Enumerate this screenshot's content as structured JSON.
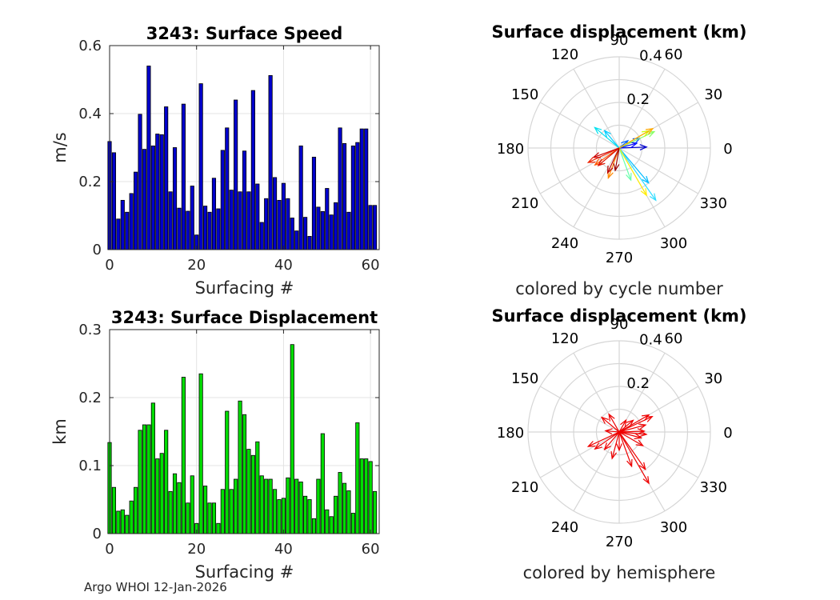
{
  "footer": "Argo WHOI 12-Jan-2026",
  "chart_data": [
    {
      "id": "speed",
      "type": "bar",
      "title": "3243: Surface Speed",
      "xlabel": "Surfacing #",
      "ylabel": "m/s",
      "xlim": [
        0,
        62
      ],
      "ylim": [
        0,
        0.6
      ],
      "xticks": [
        0,
        20,
        40,
        60
      ],
      "xtick_labels": [
        "0",
        "20",
        "40",
        "60"
      ],
      "yticks": [
        0,
        0.2,
        0.4,
        0.6
      ],
      "ytick_labels": [
        "0",
        "0.2",
        "0.4",
        "0.6"
      ],
      "bar_color": "#0000cc",
      "x": [
        0,
        1,
        2,
        3,
        4,
        5,
        6,
        7,
        8,
        9,
        10,
        11,
        12,
        13,
        14,
        15,
        16,
        17,
        18,
        19,
        20,
        21,
        22,
        23,
        24,
        25,
        26,
        27,
        28,
        29,
        30,
        31,
        32,
        33,
        34,
        35,
        36,
        37,
        38,
        39,
        40,
        41,
        42,
        43,
        44,
        45,
        46,
        47,
        48,
        49,
        50,
        51,
        52,
        53,
        54,
        55,
        56,
        57,
        58,
        59,
        60,
        61
      ],
      "values": [
        0.318,
        0.285,
        0.09,
        0.145,
        0.11,
        0.165,
        0.228,
        0.398,
        0.295,
        0.54,
        0.305,
        0.34,
        0.338,
        0.42,
        0.17,
        0.3,
        0.122,
        0.428,
        0.113,
        0.187,
        0.043,
        0.488,
        0.128,
        0.11,
        0.21,
        0.12,
        0.292,
        0.358,
        0.175,
        0.44,
        0.17,
        0.29,
        0.17,
        0.468,
        0.193,
        0.08,
        0.15,
        0.512,
        0.212,
        0.145,
        0.195,
        0.15,
        0.093,
        0.055,
        0.305,
        0.095,
        0.039,
        0.272,
        0.125,
        0.112,
        0.18,
        0.102,
        0.138,
        0.358,
        0.312,
        0.11,
        0.305,
        0.315,
        0.355,
        0.355,
        0.13,
        0.13
      ]
    },
    {
      "id": "displacement",
      "type": "bar",
      "title": "3243: Surface Displacement",
      "xlabel": "Surfacing #",
      "ylabel": "km",
      "xlim": [
        0,
        62
      ],
      "ylim": [
        0,
        0.3
      ],
      "xticks": [
        0,
        20,
        40,
        60
      ],
      "xtick_labels": [
        "0",
        "20",
        "40",
        "60"
      ],
      "yticks": [
        0,
        0.1,
        0.2,
        0.3
      ],
      "ytick_labels": [
        "0",
        "0.1",
        "0.2",
        "0.3"
      ],
      "bar_color": "#00dd00",
      "x": [
        0,
        1,
        2,
        3,
        4,
        5,
        6,
        7,
        8,
        9,
        10,
        11,
        12,
        13,
        14,
        15,
        16,
        17,
        18,
        19,
        20,
        21,
        22,
        23,
        24,
        25,
        26,
        27,
        28,
        29,
        30,
        31,
        32,
        33,
        34,
        35,
        36,
        37,
        38,
        39,
        40,
        41,
        42,
        43,
        44,
        45,
        46,
        47,
        48,
        49,
        50,
        51,
        52,
        53,
        54,
        55,
        56,
        57,
        58,
        59,
        60,
        61
      ],
      "values": [
        0.134,
        0.068,
        0.033,
        0.035,
        0.027,
        0.048,
        0.068,
        0.152,
        0.16,
        0.16,
        0.192,
        0.11,
        0.118,
        0.152,
        0.062,
        0.088,
        0.075,
        0.23,
        0.045,
        0.085,
        0.015,
        0.235,
        0.07,
        0.045,
        0.045,
        0.015,
        0.065,
        0.18,
        0.065,
        0.08,
        0.195,
        0.175,
        0.124,
        0.115,
        0.135,
        0.085,
        0.08,
        0.08,
        0.065,
        0.05,
        0.052,
        0.082,
        0.278,
        0.08,
        0.076,
        0.055,
        0.05,
        0.022,
        0.08,
        0.147,
        0.035,
        0.025,
        0.055,
        0.09,
        0.074,
        0.063,
        0.03,
        0.163,
        0.11,
        0.11,
        0.106,
        0.062
      ]
    },
    {
      "id": "polar-cycle",
      "type": "polar-vector",
      "title": "Surface displacement (km)",
      "caption": "colored by cycle number",
      "r_max": 0.4,
      "r_ticks": [
        "0.2",
        "0.4"
      ],
      "theta_labels": [
        "0",
        "30",
        "60",
        "90",
        "120",
        "150",
        "180",
        "210",
        "240",
        "270",
        "300",
        "330"
      ],
      "vectors": [
        {
          "angle_deg": 2,
          "r": 0.12,
          "color": "#0000cc"
        },
        {
          "angle_deg": 15,
          "r": 0.08,
          "color": "#0000ff"
        },
        {
          "angle_deg": 25,
          "r": 0.1,
          "color": "#0044ff"
        },
        {
          "angle_deg": 40,
          "r": 0.05,
          "color": "#0066ff"
        },
        {
          "angle_deg": 130,
          "r": 0.1,
          "color": "#00ccff"
        },
        {
          "angle_deg": 140,
          "r": 0.14,
          "color": "#00e0ee"
        },
        {
          "angle_deg": 310,
          "r": 0.2,
          "color": "#00bbff"
        },
        {
          "angle_deg": 305,
          "r": 0.28,
          "color": "#33ddff"
        },
        {
          "angle_deg": 290,
          "r": 0.15,
          "color": "#66ffaa"
        },
        {
          "angle_deg": 25,
          "r": 0.17,
          "color": "#88ff66"
        },
        {
          "angle_deg": 30,
          "r": 0.15,
          "color": "#ccff00"
        },
        {
          "angle_deg": 300,
          "r": 0.24,
          "color": "#ffee00"
        },
        {
          "angle_deg": 30,
          "r": 0.17,
          "color": "#ffaa00"
        },
        {
          "angle_deg": 250,
          "r": 0.14,
          "color": "#ff8800"
        },
        {
          "angle_deg": 215,
          "r": 0.13,
          "color": "#ff5500"
        },
        {
          "angle_deg": 205,
          "r": 0.15,
          "color": "#ee2200"
        },
        {
          "angle_deg": 220,
          "r": 0.12,
          "color": "#dd1100"
        },
        {
          "angle_deg": 245,
          "r": 0.12,
          "color": "#bb0000"
        },
        {
          "angle_deg": 260,
          "r": 0.1,
          "color": "#990000"
        },
        {
          "angle_deg": 200,
          "r": 0.12,
          "color": "#cc0000"
        }
      ]
    },
    {
      "id": "polar-hemisphere",
      "type": "polar-vector",
      "title": "Surface displacement (km)",
      "caption": "colored by hemisphere",
      "r_max": 0.4,
      "r_ticks": [
        "0.2",
        "0.4"
      ],
      "theta_labels": [
        "0",
        "30",
        "60",
        "90",
        "120",
        "150",
        "180",
        "210",
        "240",
        "270",
        "300",
        "330"
      ],
      "vectors": [
        {
          "angle_deg": 2,
          "r": 0.11,
          "color": "#ee0000"
        },
        {
          "angle_deg": 15,
          "r": 0.12,
          "color": "#ee0000"
        },
        {
          "angle_deg": 25,
          "r": 0.16,
          "color": "#ee0000"
        },
        {
          "angle_deg": 30,
          "r": 0.15,
          "color": "#ee0000"
        },
        {
          "angle_deg": 40,
          "r": 0.08,
          "color": "#ee0000"
        },
        {
          "angle_deg": 60,
          "r": 0.06,
          "color": "#ee0000"
        },
        {
          "angle_deg": 120,
          "r": 0.09,
          "color": "#ee0000"
        },
        {
          "angle_deg": 140,
          "r": 0.1,
          "color": "#ee0000"
        },
        {
          "angle_deg": 175,
          "r": 0.06,
          "color": "#ee0000"
        },
        {
          "angle_deg": 205,
          "r": 0.15,
          "color": "#ee0000"
        },
        {
          "angle_deg": 215,
          "r": 0.13,
          "color": "#ee0000"
        },
        {
          "angle_deg": 230,
          "r": 0.1,
          "color": "#ee0000"
        },
        {
          "angle_deg": 255,
          "r": 0.12,
          "color": "#ee0000"
        },
        {
          "angle_deg": 270,
          "r": 0.08,
          "color": "#ee0000"
        },
        {
          "angle_deg": 290,
          "r": 0.16,
          "color": "#ee0000"
        },
        {
          "angle_deg": 300,
          "r": 0.26,
          "color": "#ee0000"
        },
        {
          "angle_deg": 305,
          "r": 0.2,
          "color": "#ee0000"
        },
        {
          "angle_deg": 330,
          "r": 0.12,
          "color": "#ee0000"
        },
        {
          "angle_deg": 345,
          "r": 0.1,
          "color": "#ee0000"
        },
        {
          "angle_deg": 355,
          "r": 0.12,
          "color": "#ee0000"
        }
      ]
    }
  ]
}
